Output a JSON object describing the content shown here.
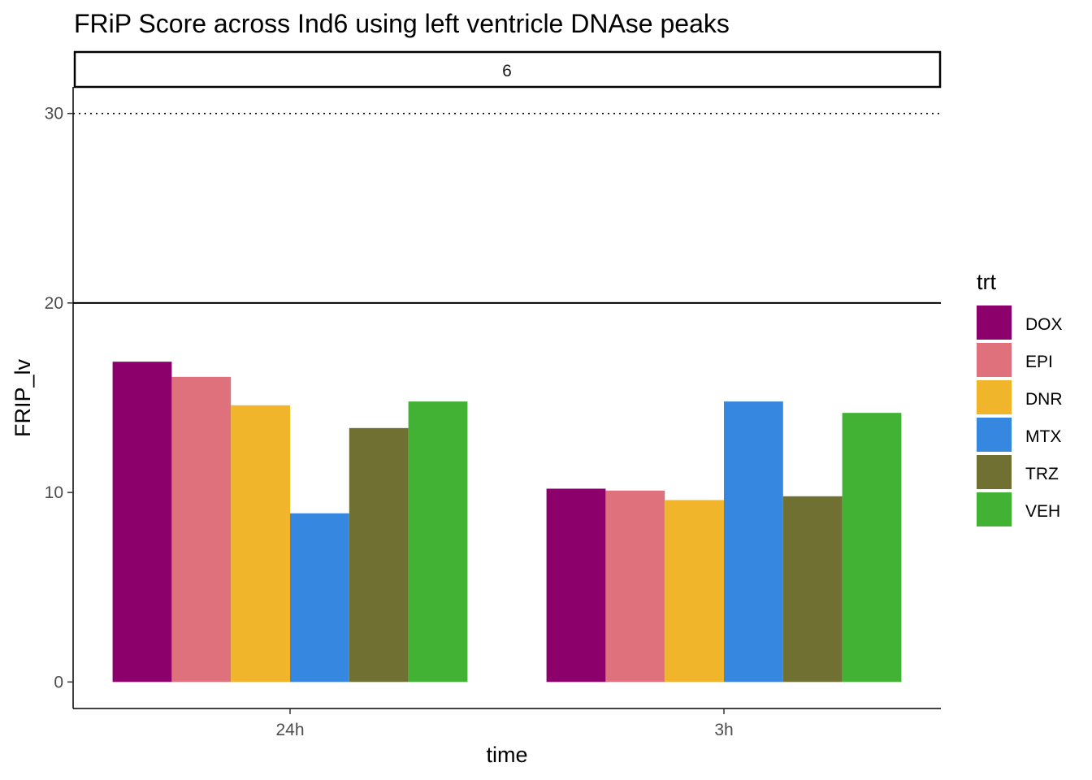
{
  "chart_data": {
    "type": "bar",
    "title": "FRiP Score across Ind6 using left ventricle DNAse peaks",
    "facet_label": "6",
    "xlabel": "time",
    "ylabel": "FRIP_lv",
    "categories": [
      "24h",
      "3h"
    ],
    "ylim": [
      -1.4,
      31.4
    ],
    "yticks": [
      0,
      10,
      20,
      30
    ],
    "hlines": [
      {
        "y": 20,
        "style": "solid"
      },
      {
        "y": 30,
        "style": "dotted"
      }
    ],
    "legend_title": "trt",
    "legend_position": "right",
    "grid": false,
    "series": [
      {
        "name": "DOX",
        "color": "#8B006B",
        "values": [
          16.9,
          10.2
        ]
      },
      {
        "name": "EPI",
        "color": "#DF717D",
        "values": [
          16.1,
          10.1
        ]
      },
      {
        "name": "DNR",
        "color": "#F0B52A",
        "values": [
          14.6,
          9.6
        ]
      },
      {
        "name": "MTX",
        "color": "#3587E0",
        "values": [
          8.9,
          14.8
        ]
      },
      {
        "name": "TRZ",
        "color": "#707033",
        "values": [
          13.4,
          9.8
        ]
      },
      {
        "name": "VEH",
        "color": "#41B233",
        "values": [
          14.8,
          14.2
        ]
      }
    ]
  }
}
